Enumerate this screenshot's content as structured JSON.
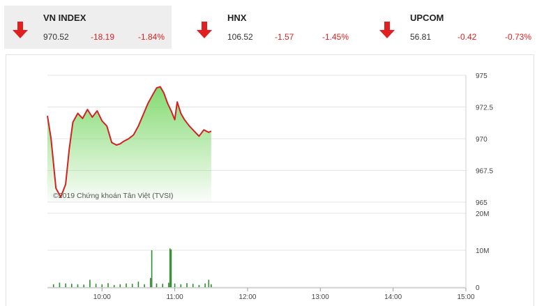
{
  "indices": [
    {
      "name": "VN INDEX",
      "value": "970.52",
      "change": "-18.19",
      "percent": "-1.84%"
    },
    {
      "name": "HNX",
      "value": "106.52",
      "change": "-1.57",
      "percent": "-1.45%"
    },
    {
      "name": "UPCOM",
      "value": "56.81",
      "change": "-0.42",
      "percent": "-0.73%"
    }
  ],
  "colors": {
    "down": "#e02020",
    "line": "#d42020",
    "area_top": "#7dd86a",
    "volume": "#2e8b2e",
    "grid": "#e4e4e4"
  },
  "chart_data": {
    "type": "line",
    "copyright": "©2019 Chứng khoán Tân Việt (TVSI)",
    "x_ticks": [
      "10:00",
      "11:00",
      "12:00",
      "13:00",
      "14:00",
      "15:00"
    ],
    "price_axis": {
      "ticks": [
        "975",
        "972.5",
        "970",
        "967.5",
        "965"
      ],
      "ylim": [
        965,
        975
      ]
    },
    "volume_axis": {
      "ticks": [
        "20M",
        "10M",
        "0"
      ],
      "ylim": [
        0,
        20
      ]
    },
    "series": [
      {
        "x": [
          "09:15",
          "09:18",
          "09:22",
          "09:26",
          "09:30",
          "09:33",
          "09:36",
          "09:40",
          "09:44",
          "09:48",
          "09:52",
          "09:56",
          "10:00",
          "10:04",
          "10:08",
          "10:12",
          "10:15",
          "10:18",
          "10:22",
          "10:26",
          "10:30",
          "10:34",
          "10:38",
          "10:42",
          "10:45",
          "10:48",
          "10:51",
          "10:54",
          "10:57",
          "11:00",
          "11:02",
          "11:03",
          "11:05",
          "11:08",
          "11:12",
          "11:16",
          "11:20",
          "11:24",
          "11:28",
          "11:30"
        ],
        "values": [
          971.8,
          970.0,
          966.1,
          965.4,
          966.4,
          969.2,
          971.3,
          972.0,
          971.6,
          972.3,
          971.7,
          972.2,
          971.4,
          971.0,
          969.7,
          969.5,
          969.6,
          969.8,
          970.0,
          970.3,
          971.0,
          971.9,
          972.8,
          973.5,
          974.0,
          974.1,
          973.6,
          972.8,
          972.2,
          971.5,
          972.9,
          972.6,
          972.0,
          971.5,
          971.0,
          970.6,
          970.2,
          970.7,
          970.5,
          970.6
        ]
      },
      {
        "x": [
          "09:20",
          "09:25",
          "09:30",
          "09:35",
          "09:40",
          "09:45",
          "09:50",
          "09:55",
          "10:00",
          "10:05",
          "10:10",
          "10:15",
          "10:20",
          "10:25",
          "10:30",
          "10:35",
          "10:40",
          "10:41",
          "10:45",
          "10:50",
          "10:55",
          "10:56",
          "10:57",
          "11:00",
          "11:05",
          "11:10",
          "11:15",
          "11:20",
          "11:25",
          "11:28",
          "11:30"
        ],
        "values": [
          0.8,
          1.2,
          1.0,
          0.9,
          0.8,
          0.7,
          2.0,
          0.9,
          0.8,
          1.1,
          0.6,
          0.8,
          1.0,
          0.9,
          1.5,
          0.8,
          2.5,
          10.0,
          1.0,
          0.9,
          1.2,
          10.5,
          10.2,
          1.0,
          0.8,
          1.1,
          0.9,
          0.6,
          1.0,
          2.0,
          0.8
        ]
      }
    ]
  }
}
